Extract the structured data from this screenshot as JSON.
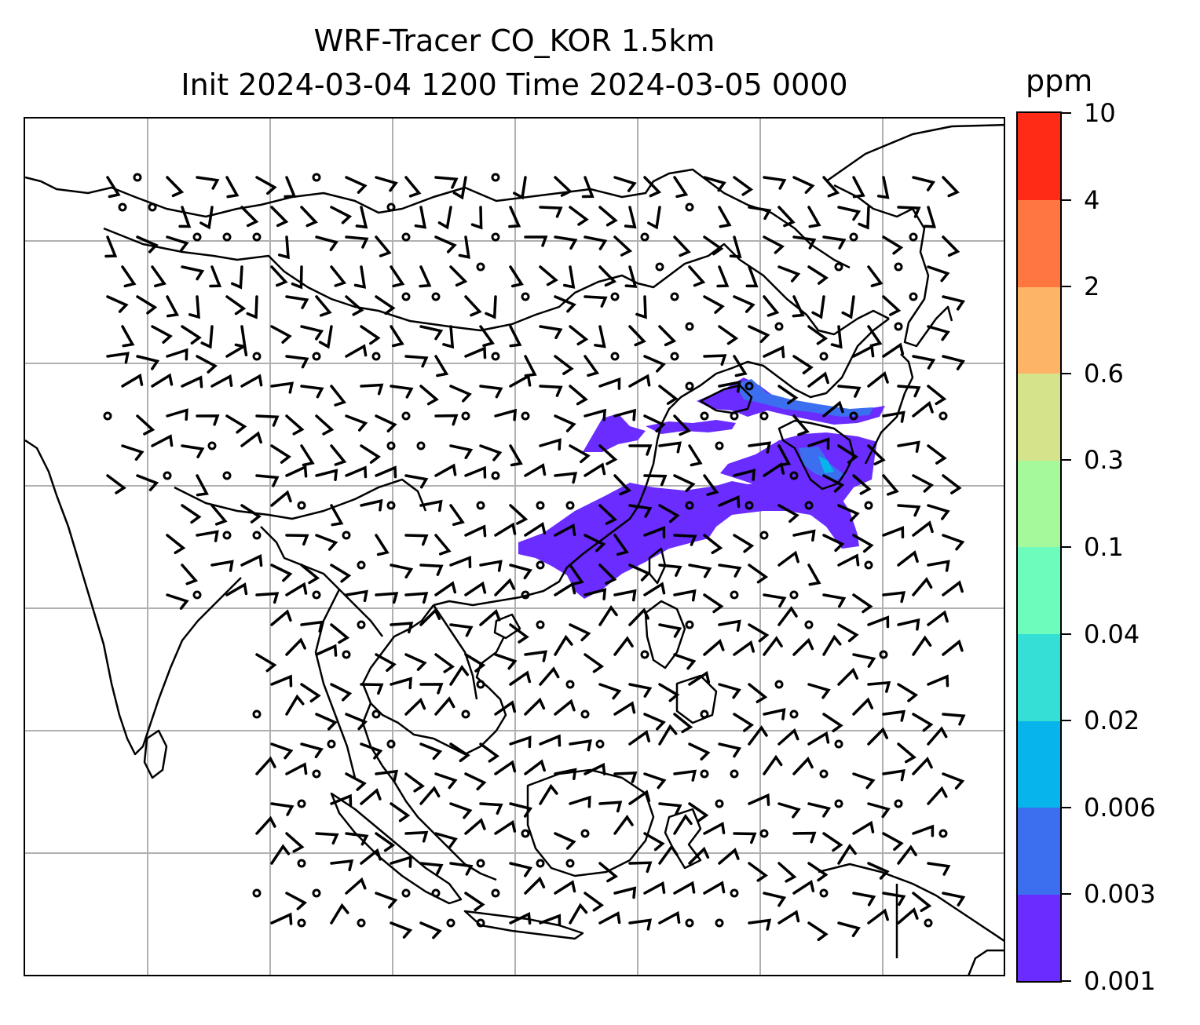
{
  "title": {
    "line1": "WRF-Tracer CO_KOR 1.5km",
    "line2": "Init 2024-03-04 1200 Time 2024-03-05 0000"
  },
  "colorbar": {
    "unit": "ppm",
    "ticks": [
      "0.001",
      "0.003",
      "0.006",
      "0.02",
      "0.04",
      "0.1",
      "0.3",
      "0.6",
      "2",
      "4",
      "10"
    ],
    "colors": [
      "#6a2cff",
      "#3b6ff0",
      "#08b4ec",
      "#36dfd6",
      "#6efcbd",
      "#a6f99a",
      "#d5e38a",
      "#fdb466",
      "#ff7640",
      "#ff2b17"
    ]
  },
  "map": {
    "gridlines": true,
    "coastline_color": "#000000",
    "gridline_color": "#b0b0b0",
    "tracer_colors": {
      "low": "#6a2cff",
      "mid": "#3b6ff0",
      "high": "#08b4ec"
    }
  }
}
